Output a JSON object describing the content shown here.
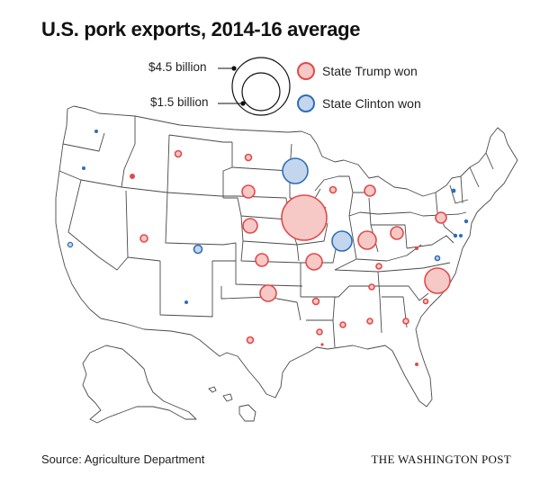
{
  "title": "U.S. pork exports, 2014-16 average",
  "legend": {
    "size_large_label": "$4.5 billion",
    "size_small_label": "$1.5 billion",
    "trump_label": "State Trump won",
    "clinton_label": "State Clinton won"
  },
  "colors": {
    "trump_fill": "#f7c9c6",
    "trump_stroke": "#e2494a",
    "clinton_fill": "#c4d6ee",
    "clinton_stroke": "#2f6eb3",
    "state_stroke": "#4a4a4a"
  },
  "footer": {
    "source": "Source: Agriculture Department",
    "credit": "THE WASHINGTON POST"
  }
}
